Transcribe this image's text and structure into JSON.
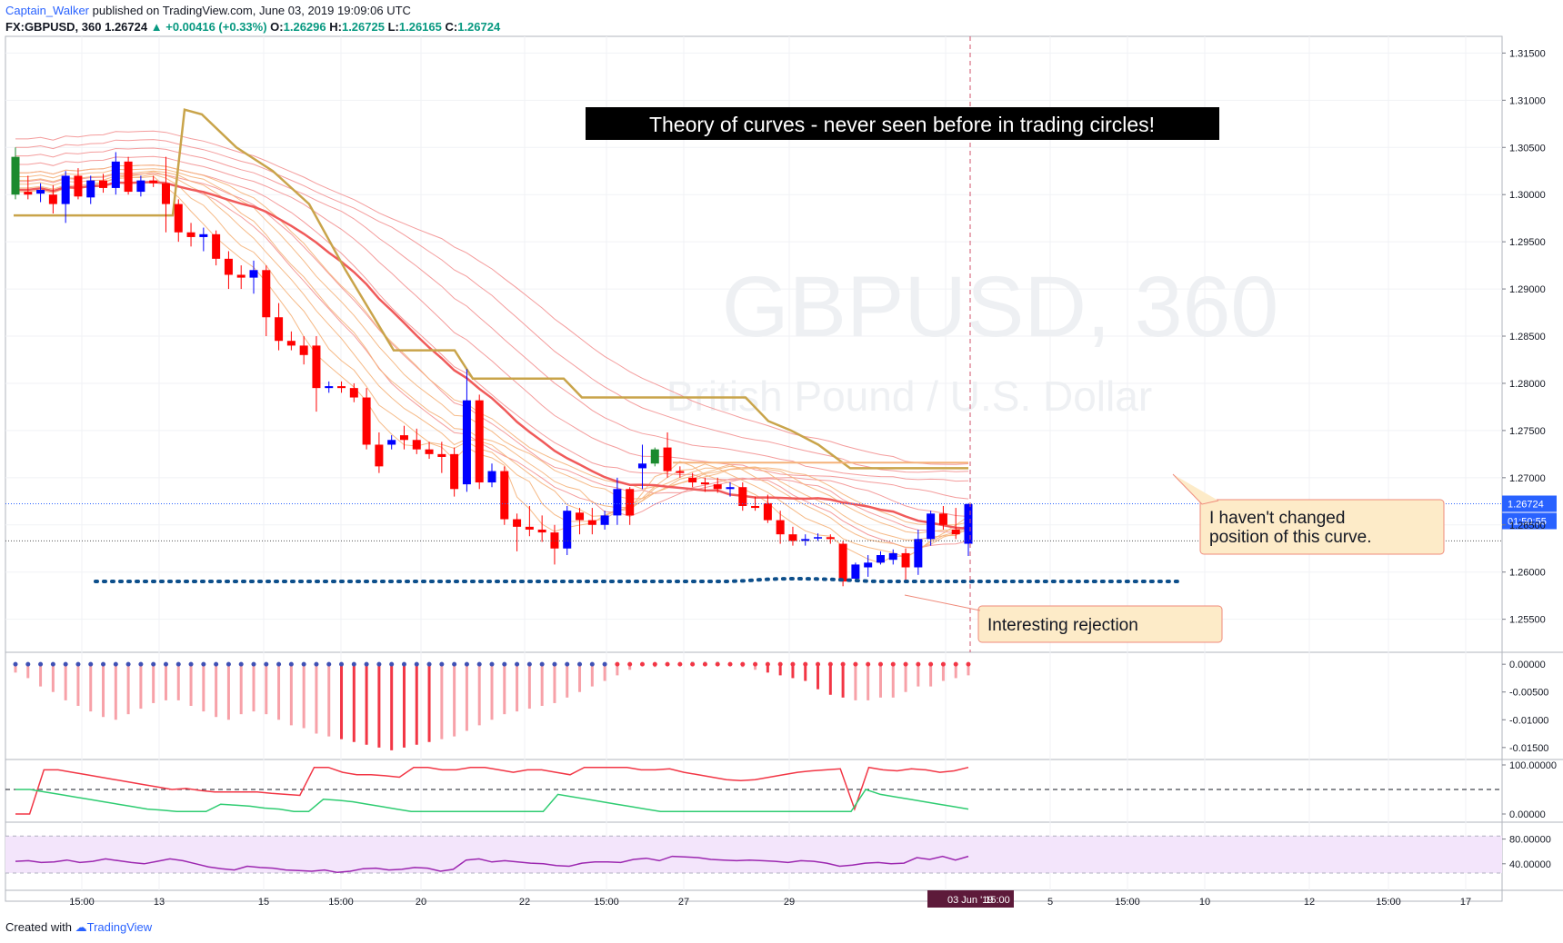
{
  "header": {
    "author": "Captain_Walker",
    "published": "published on TradingView.com, June 03, 2019 19:09:06 UTC",
    "symbol": "FX:GBPUSD, 360",
    "last": "1.26724",
    "change": "+0.00416 (+0.33%)",
    "o_label": "O:",
    "o_value": "1.26296",
    "h_label": "H:",
    "h_value": "1.26725",
    "l_label": "L:",
    "l_value": "1.26165",
    "c_label": "C:",
    "c_value": "1.26724"
  },
  "footer": {
    "created_with": "Created with",
    "brand": "TradingView"
  },
  "watermark": {
    "symbol": "GBPUSD, 360",
    "name": "British Pound / U.S. Dollar"
  },
  "annotations": {
    "title": "Theory of curves - never seen before in trading circles!",
    "callout_curve": [
      "I haven't changed",
      "position of this curve."
    ],
    "callout_rejection": "Interesting rejection"
  },
  "colors": {
    "up": "#0000ff",
    "down": "#ff0000",
    "green": "#1b8a2e",
    "gold": "#c9a44a",
    "dots": "#0d4f8b",
    "ema": "#f05a5a",
    "rsi": "#9c27b0"
  },
  "chart_data": [
    {
      "type": "candlestick",
      "symbol": "FX:GBPUSD",
      "timeframe": "360",
      "y_ticks": [
        1.315,
        1.31,
        1.305,
        1.3,
        1.295,
        1.29,
        1.285,
        1.28,
        1.275,
        1.27,
        1.265,
        1.26,
        1.255
      ],
      "y_tick_labels": [
        "1.31500",
        "1.31000",
        "1.30500",
        "1.30000",
        "1.29500",
        "1.29000",
        "1.28500",
        "1.28000",
        "1.27500",
        "1.27000",
        "1.26500",
        "1.26000",
        "1.25500"
      ],
      "ylim": [
        1.2515,
        1.316
      ],
      "x_tick_labels": [
        "15:00",
        "13",
        "15",
        "15:00",
        "20",
        "22",
        "15:00",
        "27",
        "29",
        "03 Jun '19",
        "5",
        "15:00",
        "10",
        "12",
        "15:00",
        "17"
      ],
      "price_label": "1.26724",
      "countdown_label": "01:50:55",
      "time_label": "15:00",
      "candles": [
        [
          1.304,
          1.305,
          1.2995,
          1.3
        ],
        [
          1.3003,
          1.302,
          1.2995,
          1.3
        ],
        [
          1.3001,
          1.3012,
          1.2992,
          1.3005
        ],
        [
          1.3,
          1.301,
          1.298,
          1.299
        ],
        [
          1.299,
          1.3025,
          1.297,
          1.302
        ],
        [
          1.302,
          1.3028,
          1.2995,
          1.2998
        ],
        [
          1.2997,
          1.302,
          1.299,
          1.3015
        ],
        [
          1.3015,
          1.3022,
          1.3002,
          1.3007
        ],
        [
          1.3007,
          1.3045,
          1.3,
          1.3035
        ],
        [
          1.3035,
          1.304,
          1.3,
          1.3003
        ],
        [
          1.3003,
          1.302,
          1.2998,
          1.3015
        ],
        [
          1.3015,
          1.302,
          1.3008,
          1.3012
        ],
        [
          1.3012,
          1.304,
          1.296,
          1.299
        ],
        [
          1.299,
          1.2995,
          1.295,
          1.296
        ],
        [
          1.296,
          1.297,
          1.2945,
          1.2955
        ],
        [
          1.2955,
          1.2965,
          1.294,
          1.2958
        ],
        [
          1.2958,
          1.2962,
          1.2925,
          1.2932
        ],
        [
          1.2932,
          1.294,
          1.29,
          1.2915
        ],
        [
          1.2915,
          1.2925,
          1.29,
          1.2912
        ],
        [
          1.2912,
          1.293,
          1.2895,
          1.292
        ],
        [
          1.292,
          1.2925,
          1.285,
          1.287
        ],
        [
          1.287,
          1.2885,
          1.2835,
          1.2845
        ],
        [
          1.2845,
          1.2855,
          1.2835,
          1.284
        ],
        [
          1.284,
          1.285,
          1.282,
          1.283
        ],
        [
          1.284,
          1.285,
          1.277,
          1.2795
        ],
        [
          1.2795,
          1.2802,
          1.279,
          1.2797
        ],
        [
          1.2797,
          1.2802,
          1.279,
          1.2795
        ],
        [
          1.2795,
          1.28,
          1.278,
          1.2785
        ],
        [
          1.2785,
          1.2795,
          1.273,
          1.2735
        ],
        [
          1.2735,
          1.2748,
          1.2705,
          1.2712
        ],
        [
          1.2735,
          1.2745,
          1.273,
          1.274
        ],
        [
          1.2745,
          1.2755,
          1.273,
          1.274
        ],
        [
          1.274,
          1.2752,
          1.2725,
          1.273
        ],
        [
          1.273,
          1.2738,
          1.272,
          1.2725
        ],
        [
          1.2725,
          1.2738,
          1.2705,
          1.2722
        ],
        [
          1.2725,
          1.2732,
          1.268,
          1.2688
        ],
        [
          1.2693,
          1.2815,
          1.2685,
          1.2782
        ],
        [
          1.2782,
          1.2788,
          1.2688,
          1.2695
        ],
        [
          1.2695,
          1.2715,
          1.269,
          1.2707
        ],
        [
          1.2707,
          1.2712,
          1.265,
          1.2656
        ],
        [
          1.2656,
          1.2662,
          1.2622,
          1.2648
        ],
        [
          1.2648,
          1.267,
          1.2638,
          1.2645
        ],
        [
          1.2645,
          1.266,
          1.2632,
          1.2642
        ],
        [
          1.2642,
          1.265,
          1.2608,
          1.2625
        ],
        [
          1.2625,
          1.267,
          1.2618,
          1.2665
        ],
        [
          1.2663,
          1.2668,
          1.264,
          1.2655
        ],
        [
          1.2655,
          1.2668,
          1.264,
          1.265
        ],
        [
          1.265,
          1.2665,
          1.2645,
          1.266
        ],
        [
          1.266,
          1.27,
          1.265,
          1.2688
        ],
        [
          1.2688,
          1.269,
          1.265,
          1.266
        ],
        [
          1.271,
          1.2735,
          1.2688,
          1.2715
        ],
        [
          1.2715,
          1.2732,
          1.2712,
          1.273
        ],
        [
          1.2732,
          1.2748,
          1.27,
          1.2707
        ],
        [
          1.2707,
          1.2712,
          1.27,
          1.2705
        ],
        [
          1.27,
          1.2705,
          1.269,
          1.2695
        ],
        [
          1.2695,
          1.27,
          1.2685,
          1.2693
        ],
        [
          1.2693,
          1.27,
          1.2684,
          1.2688
        ],
        [
          1.2688,
          1.2695,
          1.268,
          1.269
        ],
        [
          1.269,
          1.2695,
          1.2665,
          1.267
        ],
        [
          1.267,
          1.268,
          1.2665,
          1.2668
        ],
        [
          1.2673,
          1.2682,
          1.2652,
          1.2655
        ],
        [
          1.2655,
          1.2665,
          1.263,
          1.264
        ],
        [
          1.264,
          1.2648,
          1.2628,
          1.2633
        ],
        [
          1.2633,
          1.264,
          1.2628,
          1.2635
        ],
        [
          1.2637,
          1.2641,
          1.2633,
          1.2637
        ],
        [
          1.2637,
          1.264,
          1.263,
          1.2635
        ],
        [
          1.263,
          1.2633,
          1.2585,
          1.259
        ],
        [
          1.2593,
          1.261,
          1.259,
          1.2608
        ],
        [
          1.2605,
          1.2618,
          1.2595,
          1.261
        ],
        [
          1.261,
          1.2622,
          1.2608,
          1.2618
        ],
        [
          1.2613,
          1.2624,
          1.2608,
          1.262
        ],
        [
          1.262,
          1.2625,
          1.259,
          1.2605
        ],
        [
          1.2605,
          1.2645,
          1.2597,
          1.2635
        ],
        [
          1.2635,
          1.2665,
          1.2628,
          1.2662
        ],
        [
          1.2662,
          1.267,
          1.2645,
          1.265
        ],
        [
          1.2645,
          1.2668,
          1.2635,
          1.264
        ],
        [
          1.263,
          1.2673,
          1.2617,
          1.2672
        ]
      ]
    },
    {
      "type": "histogram",
      "ylim": [
        -0.0165,
        0.0015
      ],
      "y_tick_labels": [
        "0.00000",
        "-0.00500",
        "-0.01000",
        "-0.01500"
      ],
      "values": [
        -0.0015,
        -0.0025,
        -0.004,
        -0.005,
        -0.0065,
        -0.0075,
        -0.0085,
        -0.0095,
        -0.01,
        -0.009,
        -0.008,
        -0.007,
        -0.0065,
        -0.0065,
        -0.0075,
        -0.0085,
        -0.0095,
        -0.01,
        -0.009,
        -0.0085,
        -0.009,
        -0.01,
        -0.011,
        -0.0115,
        -0.0125,
        -0.013,
        -0.0135,
        -0.014,
        -0.0145,
        -0.015,
        -0.0155,
        -0.015,
        -0.0145,
        -0.014,
        -0.0135,
        -0.013,
        -0.012,
        -0.011,
        -0.01,
        -0.009,
        -0.0085,
        -0.008,
        -0.0075,
        -0.007,
        -0.006,
        -0.005,
        -0.004,
        -0.003,
        -0.002,
        -0.001,
        -0.0002,
        -0.0005,
        -0.0002,
        -0.0001,
        0.0004,
        0.0004,
        0.0004,
        -0.0002,
        -0.0005,
        -0.001,
        -0.0015,
        -0.002,
        -0.0025,
        -0.003,
        -0.0045,
        -0.0055,
        -0.006,
        -0.0065,
        -0.0065,
        -0.006,
        -0.006,
        -0.005,
        -0.004,
        -0.004,
        -0.003,
        -0.0025,
        -0.002
      ]
    },
    {
      "type": "line",
      "ylim": [
        0,
        100
      ],
      "y_tick_labels": [
        "100.00000",
        "0.00000"
      ],
      "level": 50,
      "series": [
        {
          "values": [
            0,
            0,
            90,
            90,
            85,
            80,
            75,
            70,
            65,
            60,
            55,
            50,
            52,
            48,
            45,
            45,
            45,
            45,
            42,
            40,
            38,
            95,
            95,
            85,
            80,
            80,
            78,
            75,
            95,
            95,
            90,
            90,
            95,
            95,
            90,
            85,
            90,
            90,
            85,
            80,
            95,
            95,
            95,
            95,
            90,
            90,
            92,
            85,
            80,
            75,
            70,
            68,
            70,
            75,
            80,
            85,
            88,
            90,
            92,
            10,
            95,
            90,
            88,
            92,
            90,
            85,
            88,
            95
          ]
        },
        {
          "values": [
            50,
            50,
            45,
            40,
            35,
            30,
            25,
            20,
            15,
            10,
            8,
            5,
            5,
            5,
            20,
            18,
            16,
            12,
            10,
            5,
            5,
            30,
            28,
            25,
            20,
            15,
            10,
            5,
            5,
            5,
            5,
            5,
            5,
            5,
            5,
            5,
            5,
            40,
            35,
            30,
            25,
            20,
            15,
            10,
            5,
            5,
            5,
            5,
            5,
            5,
            5,
            5,
            5,
            5,
            5,
            5,
            5,
            5,
            50,
            40,
            35,
            30,
            25,
            20,
            15,
            10
          ]
        }
      ]
    },
    {
      "type": "line",
      "ylim": [
        0,
        100
      ],
      "y_tick_labels": [
        "80.00000",
        "40.00000"
      ],
      "band": [
        30,
        70
      ],
      "series": [
        {
          "values": [
            44,
            45,
            42,
            43,
            46,
            42,
            44,
            48,
            45,
            42,
            40,
            44,
            48,
            45,
            40,
            35,
            32,
            30,
            36,
            34,
            33,
            30,
            29,
            28,
            30,
            26,
            28,
            32,
            33,
            30,
            31,
            34,
            33,
            28,
            31,
            46,
            48,
            43,
            45,
            43,
            41,
            40,
            37,
            36,
            41,
            43,
            43,
            42,
            47,
            49,
            45,
            52,
            51,
            50,
            47,
            46,
            45,
            46,
            45,
            44,
            42,
            45,
            44,
            41,
            36,
            38,
            41,
            42,
            40,
            41,
            50,
            47,
            52,
            46,
            52
          ]
        }
      ]
    }
  ]
}
